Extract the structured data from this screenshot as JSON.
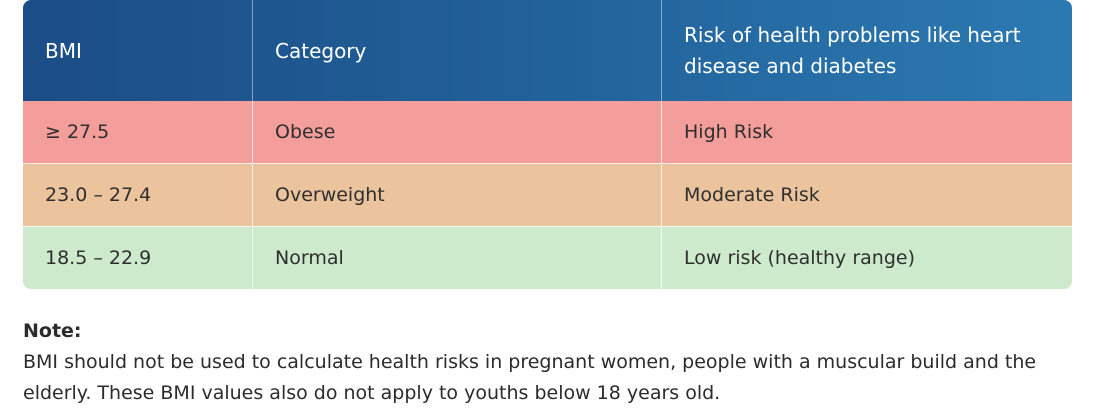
{
  "table": {
    "headers": {
      "bmi": "BMI",
      "category": "Category",
      "risk": "Risk of health problems like heart disease and diabetes"
    },
    "rows": [
      {
        "bmi": "≥ 27.5",
        "category": "Obese",
        "risk": "High Risk",
        "color": "#f49e9c"
      },
      {
        "bmi": "23.0 – 27.4",
        "category": "Overweight",
        "risk": "Moderate Risk",
        "color": "#ebc49e"
      },
      {
        "bmi": "18.5 – 22.9",
        "category": "Normal",
        "risk": "Low risk (healthy range)",
        "color": "#cdeacd"
      }
    ],
    "header_color": "#215f98"
  },
  "note": {
    "title": "Note:",
    "text": "BMI should not be used to calculate health risks in pregnant women, people with a muscular build and the elderly. These BMI values also do not apply to youths below 18 years old."
  }
}
